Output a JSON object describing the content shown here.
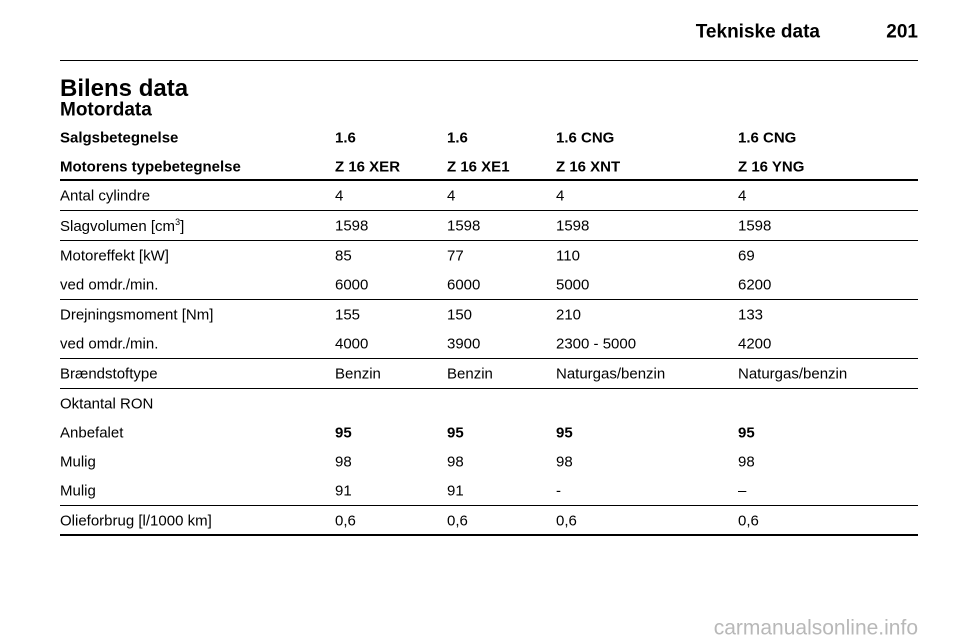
{
  "header": {
    "section": "Tekniske data",
    "page": "201"
  },
  "title": "Bilens data",
  "subtitle": "Motordata",
  "table": {
    "header_rows": [
      [
        "Salgsbetegnelse",
        "1.6",
        "1.6",
        "1.6 CNG",
        "1.6 CNG"
      ],
      [
        "Motorens typebetegnelse",
        "Z 16 XER",
        "Z 16 XE1",
        "Z 16 XNT",
        "Z 16 YNG"
      ]
    ],
    "groups": [
      [
        {
          "label": [
            "Antal cylindre"
          ],
          "cells": [
            "4",
            "4",
            "4",
            "4"
          ]
        }
      ],
      [
        {
          "label": [
            "Slagvolumen [cm",
            "3",
            "]"
          ],
          "cells": [
            "1598",
            "1598",
            "1598",
            "1598"
          ]
        }
      ],
      [
        {
          "label": [
            "Motoreffekt [kW]"
          ],
          "cells": [
            "85",
            "77",
            "110",
            "69"
          ]
        },
        {
          "label": [
            "ved omdr./min."
          ],
          "cells": [
            "6000",
            "6000",
            "5000",
            "6200"
          ]
        }
      ],
      [
        {
          "label": [
            "Drejningsmoment [Nm]"
          ],
          "cells": [
            "155",
            "150",
            "210",
            "133"
          ]
        },
        {
          "label": [
            "ved omdr./min."
          ],
          "cells": [
            "4000",
            "3900",
            "2300 - 5000",
            "4200"
          ]
        }
      ],
      [
        {
          "label": [
            "Brændstoftype"
          ],
          "cells": [
            "Benzin",
            "Benzin",
            "Naturgas/benzin",
            "Naturgas/benzin"
          ]
        }
      ],
      [
        {
          "label": [
            "Oktantal RON"
          ],
          "cells": []
        },
        {
          "label": [
            "Anbefalet"
          ],
          "cells": [
            "95",
            "95",
            "95",
            "95"
          ],
          "bold": true
        },
        {
          "label": [
            "Mulig"
          ],
          "cells": [
            "98",
            "98",
            "98",
            "98"
          ]
        },
        {
          "label": [
            "Mulig"
          ],
          "cells": [
            "91",
            "91",
            "-",
            "–"
          ]
        }
      ],
      [
        {
          "label": [
            "Olieforbrug [l/1000 km]"
          ],
          "cells": [
            "0,6",
            "0,6",
            "0,6",
            "0,6"
          ]
        }
      ]
    ]
  },
  "watermark": "carmanualsonline.info"
}
